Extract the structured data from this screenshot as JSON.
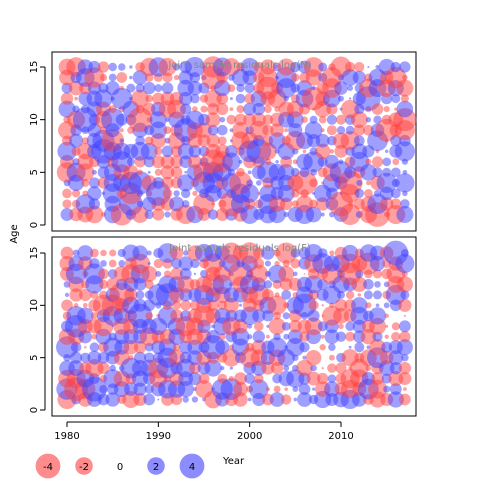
{
  "chart_data": {
    "type": "scatter",
    "subtype": "bubble",
    "shared_axes": {
      "ylabel": "Age",
      "xlabel": "",
      "x_range": [
        1980,
        2017
      ],
      "y_range": [
        1,
        15
      ],
      "x_ticks": [
        1980,
        1990,
        2000,
        2010
      ],
      "y_ticks": [
        0,
        5,
        10,
        15
      ]
    },
    "colors": {
      "positive": "#4040ff",
      "negative": "#ff4040"
    },
    "legend": {
      "placement": "bottom",
      "title": "Year",
      "items": [
        {
          "label": "-4",
          "value": -4
        },
        {
          "label": "-2",
          "value": -2
        },
        {
          "label": "0",
          "value": 0
        },
        {
          "label": "2",
          "value": 2
        },
        {
          "label": "4",
          "value": 4
        }
      ]
    },
    "panels": [
      {
        "id": "top",
        "title": "Joint sample residuals log(N)",
        "seed": 17
      },
      {
        "id": "bottom",
        "title": "Joint sample residuals log(F)",
        "seed": 91
      }
    ]
  }
}
